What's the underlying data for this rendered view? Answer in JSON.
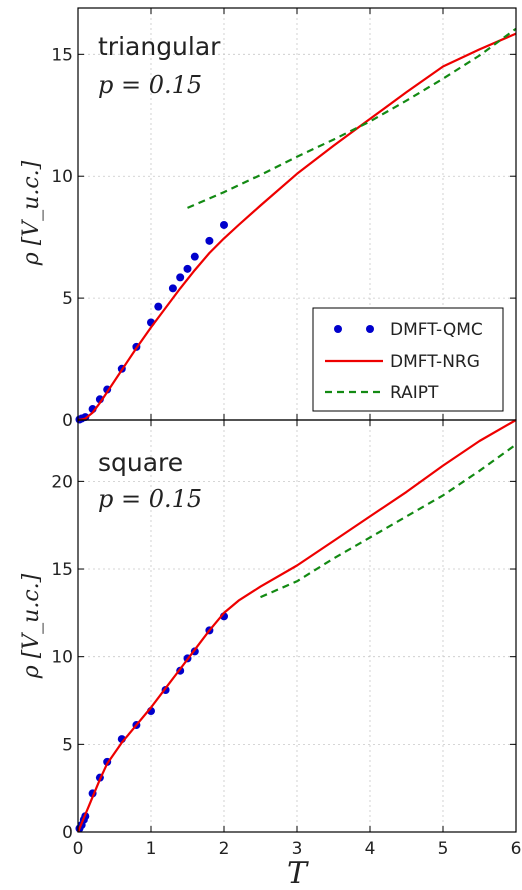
{
  "chart_data": [
    {
      "type": "line",
      "title": "triangular",
      "subtitle": "p = 0.15",
      "xlabel": "",
      "ylabel": "ρ [V_u.c.]",
      "xlim": [
        0,
        6
      ],
      "ylim": [
        0,
        16.9
      ],
      "xticks": [
        "0",
        "1",
        "2",
        "3",
        "4",
        "5",
        "6"
      ],
      "yticks": [
        0,
        5,
        10,
        15
      ],
      "ytick_labels": [
        "0",
        "5",
        "10",
        "15"
      ],
      "grid": true,
      "legend": "bottom-right",
      "series": [
        {
          "name": "DMFT-QMC",
          "kind": "scatter",
          "color": "#0000cc",
          "x": [
            0.02,
            0.05,
            0.1,
            0.2,
            0.3,
            0.4,
            0.6,
            0.8,
            1.0,
            1.1,
            1.3,
            1.4,
            1.5,
            1.6,
            1.8,
            2.0
          ],
          "y": [
            0.02,
            0.06,
            0.12,
            0.45,
            0.85,
            1.25,
            2.1,
            3.0,
            4.0,
            4.65,
            5.4,
            5.85,
            6.2,
            6.7,
            7.35,
            8.0
          ]
        },
        {
          "name": "DMFT-NRG",
          "kind": "line",
          "color": "#ee0000",
          "x": [
            0,
            0.05,
            0.1,
            0.2,
            0.3,
            0.4,
            0.6,
            0.8,
            1.0,
            1.2,
            1.4,
            1.6,
            1.8,
            2.0,
            2.2,
            2.5,
            3.0,
            3.5,
            4.0,
            4.5,
            5.0,
            5.5,
            6.0
          ],
          "y": [
            0,
            0.02,
            0.06,
            0.3,
            0.7,
            1.15,
            2.05,
            2.95,
            3.8,
            4.6,
            5.4,
            6.15,
            6.85,
            7.45,
            8.0,
            8.8,
            10.1,
            11.25,
            12.35,
            13.45,
            14.5,
            15.2,
            15.85
          ]
        },
        {
          "name": "RAIPT",
          "kind": "dashed",
          "color": "#138a13",
          "x": [
            1.5,
            2.0,
            2.5,
            3.0,
            3.5,
            4.0,
            4.5,
            5.0,
            5.5,
            6.0
          ],
          "y": [
            8.7,
            9.35,
            10.05,
            10.8,
            11.5,
            12.25,
            13.1,
            14.0,
            14.95,
            16.05
          ]
        }
      ]
    },
    {
      "type": "line",
      "title": "square",
      "subtitle": "p = 0.15",
      "xlabel": "T",
      "ylabel": "ρ [V_u.c.]",
      "xlim": [
        0,
        6
      ],
      "ylim": [
        0,
        23.5
      ],
      "xticks": [
        "0",
        "1",
        "2",
        "3",
        "4",
        "5",
        "6"
      ],
      "yticks": [
        0,
        5,
        10,
        15,
        20
      ],
      "ytick_labels": [
        "0",
        "5",
        "10",
        "15",
        "20"
      ],
      "grid": true,
      "series": [
        {
          "name": "DMFT-QMC",
          "kind": "scatter",
          "color": "#0000cc",
          "x": [
            0.02,
            0.05,
            0.08,
            0.1,
            0.2,
            0.3,
            0.4,
            0.6,
            0.8,
            1.0,
            1.2,
            1.4,
            1.5,
            1.6,
            1.8,
            2.0
          ],
          "y": [
            0.2,
            0.4,
            0.7,
            0.9,
            2.2,
            3.1,
            4.0,
            5.3,
            6.1,
            6.9,
            8.1,
            9.2,
            9.9,
            10.3,
            11.5,
            12.3
          ]
        },
        {
          "name": "DMFT-NRG",
          "kind": "line",
          "color": "#ee0000",
          "x": [
            0,
            0.05,
            0.1,
            0.15,
            0.2,
            0.3,
            0.4,
            0.6,
            0.8,
            1.0,
            1.2,
            1.4,
            1.6,
            1.8,
            2.0,
            2.2,
            2.5,
            3.0,
            3.5,
            4.0,
            4.5,
            5.0,
            5.5,
            6.0
          ],
          "y": [
            0,
            0.5,
            1.0,
            1.5,
            2.0,
            3.0,
            3.9,
            5.1,
            6.1,
            7.1,
            8.2,
            9.3,
            10.4,
            11.5,
            12.5,
            13.2,
            14.0,
            15.2,
            16.6,
            18.0,
            19.4,
            20.9,
            22.3,
            23.5
          ]
        },
        {
          "name": "RAIPT",
          "kind": "dashed",
          "color": "#138a13",
          "x": [
            2.5,
            3.0,
            3.5,
            4.0,
            4.5,
            5.0,
            5.5,
            6.0
          ],
          "y": [
            13.4,
            14.3,
            15.6,
            16.8,
            18.0,
            19.2,
            20.6,
            22.1
          ]
        }
      ]
    }
  ]
}
